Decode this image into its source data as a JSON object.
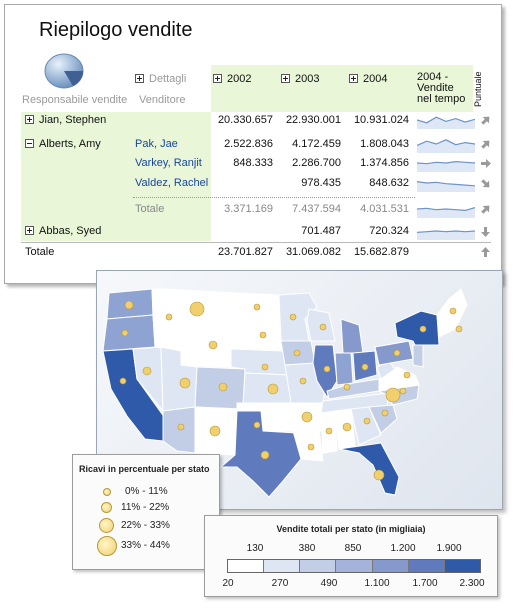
{
  "report": {
    "title": "Riepilogo vendite",
    "header": {
      "manager": "Responsabile vendite",
      "details": "Dettagli",
      "seller": "Venditore",
      "y2002": "2002",
      "y2003": "2003",
      "y2004": "2004",
      "sales_over_time": "2004 -\nVendite\nnel tempo",
      "punctual": "Puntuale"
    },
    "rows": [
      {
        "manager": "Jian, Stephen",
        "expanded": false,
        "seller": "",
        "v2002": "20.330.657",
        "v2003": "22.930.001",
        "v2004": "10.931.024",
        "trend": "up-right",
        "spark": [
          0.5,
          0.3,
          0.7,
          0.4,
          0.6,
          0.35,
          0.55
        ]
      },
      {
        "manager": "Alberts, Amy",
        "expanded": true,
        "seller": "Pak, Jae",
        "v2002": "2.522.836",
        "v2003": "4.172.459",
        "v2004": "1.808.043",
        "trend": "up-right",
        "spark": [
          0.4,
          0.7,
          0.5,
          0.8,
          0.45,
          0.6,
          0.5
        ]
      },
      {
        "manager": "",
        "expanded": null,
        "seller": "Varkey, Ranjit",
        "v2002": "848.333",
        "v2003": "2.286.700",
        "v2004": "1.374.856",
        "trend": "right",
        "spark": [
          0.5,
          0.45,
          0.55,
          0.5,
          0.6,
          0.55,
          0.5
        ]
      },
      {
        "manager": "",
        "expanded": null,
        "seller": "Valdez, Rachel",
        "v2002": "",
        "v2003": "978.435",
        "v2004": "848.632",
        "trend": "down-right",
        "spark": [
          0.6,
          0.5,
          0.55,
          0.45,
          0.4,
          0.35,
          0.3
        ]
      },
      {
        "manager": "",
        "expanded": null,
        "seller": "Totale",
        "subtotal": true,
        "v2002": "3.371.169",
        "v2003": "7.437.594",
        "v2004": "4.031.531",
        "trend": "up-right",
        "spark": [
          0.5,
          0.55,
          0.45,
          0.5,
          0.45,
          0.4,
          0.6
        ]
      },
      {
        "manager": "Abbas, Syed",
        "expanded": false,
        "seller": "",
        "v2002": "",
        "v2003": "701.487",
        "v2004": "720.324",
        "trend": "down",
        "spark": [
          0.4,
          0.45,
          0.5,
          0.45,
          0.5,
          0.45,
          0.5
        ]
      },
      {
        "manager": "Totale",
        "expanded": null,
        "seller": "",
        "grandtotal": true,
        "v2002": "23.701.827",
        "v2003": "31.069.082",
        "v2004": "15.682.879",
        "trend": "up",
        "spark": []
      }
    ]
  },
  "bubble_legend": {
    "title": "Ricavi in percentuale per stato",
    "items": [
      "0% - 11%",
      "11% - 22%",
      "22% - 33%",
      "33% - 44%"
    ]
  },
  "color_legend": {
    "title": "Vendite totali per stato (in migliaia)",
    "top_labels": [
      "130",
      "380",
      "850",
      "1.200",
      "1.900"
    ],
    "bottom_labels": [
      "20",
      "270",
      "490",
      "1.100",
      "1.700",
      "2.300"
    ],
    "colors": [
      "#ffffff",
      "#dfe6f3",
      "#c2cde6",
      "#a3b3d9",
      "#8599cc",
      "#5f7bbd",
      "#2f5aa9"
    ]
  },
  "colors": {
    "band": "#eaf6d8",
    "link": "#17469e",
    "map_bg": "#f2f4f8",
    "bubble": "#f1cf6c"
  }
}
